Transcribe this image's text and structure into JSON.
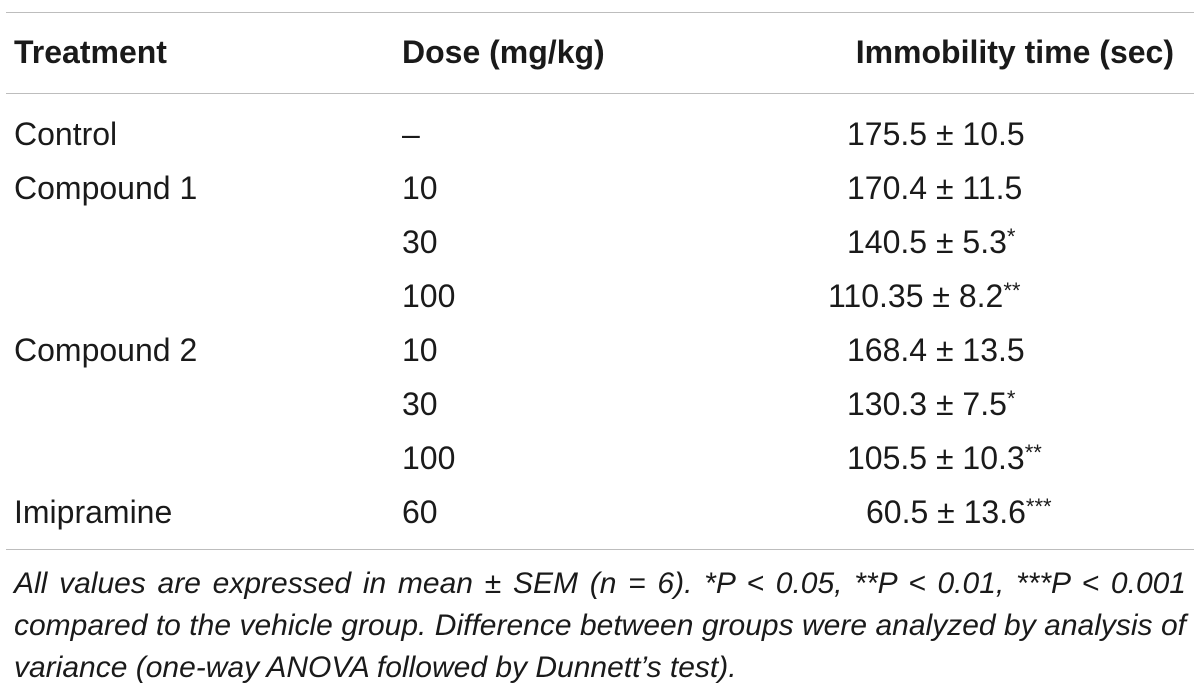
{
  "table": {
    "headers": {
      "treatment": "Treatment",
      "dose": "Dose (mg/kg)",
      "immobility": "Immobility time (sec)"
    },
    "rows": [
      {
        "treatment": "Control",
        "dose": "–",
        "value": "175.5 ± 10.5",
        "sig": ""
      },
      {
        "treatment": "Compound 1",
        "dose": "10",
        "value": "170.4 ± 11.5",
        "sig": ""
      },
      {
        "treatment": "",
        "dose": "30",
        "value": "140.5 ± 5.3",
        "sig": "*"
      },
      {
        "treatment": "",
        "dose": "100",
        "value": "110.35 ± 8.2",
        "sig": "**"
      },
      {
        "treatment": "Compound 2",
        "dose": "10",
        "value": "168.4 ± 13.5",
        "sig": ""
      },
      {
        "treatment": "",
        "dose": "30",
        "value": "130.3 ± 7.5",
        "sig": "*"
      },
      {
        "treatment": "",
        "dose": "100",
        "value": "105.5 ± 10.3",
        "sig": "**"
      },
      {
        "treatment": "Imipramine",
        "dose": "60",
        "value": "60.5 ± 13.6",
        "sig": "***"
      }
    ],
    "footnote": "All values are expressed in mean ± SEM (n = 6). *P < 0.05, **P < 0.01, ***P < 0.001 compared to the vehicle group. Difference between groups were analyzed by analysis of variance (one-way ANOVA followed by Dunnett’s test)."
  }
}
